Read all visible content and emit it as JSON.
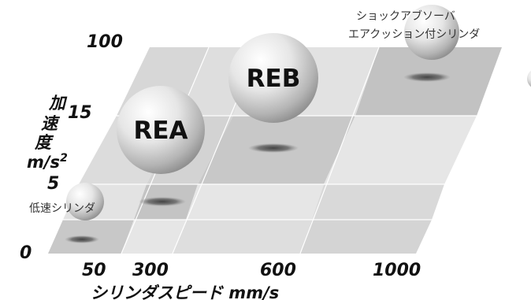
{
  "y_ticks": [
    "100",
    "15",
    "5",
    "0"
  ],
  "x_ticks": [
    "50",
    "300",
    "600",
    "1000"
  ],
  "y_axis": {
    "chars": [
      "加",
      "速",
      "度"
    ],
    "unit": "m/s",
    "exponent": "2"
  },
  "x_axis": {
    "label": "シリンダスピード mm/s"
  },
  "regions": {
    "rea": "REA",
    "reb": "REB",
    "low_speed": "低速シリンダ",
    "shock_line1": "ショックアブソーバ",
    "shock_line2": "エアクッション付シリンダ"
  }
}
